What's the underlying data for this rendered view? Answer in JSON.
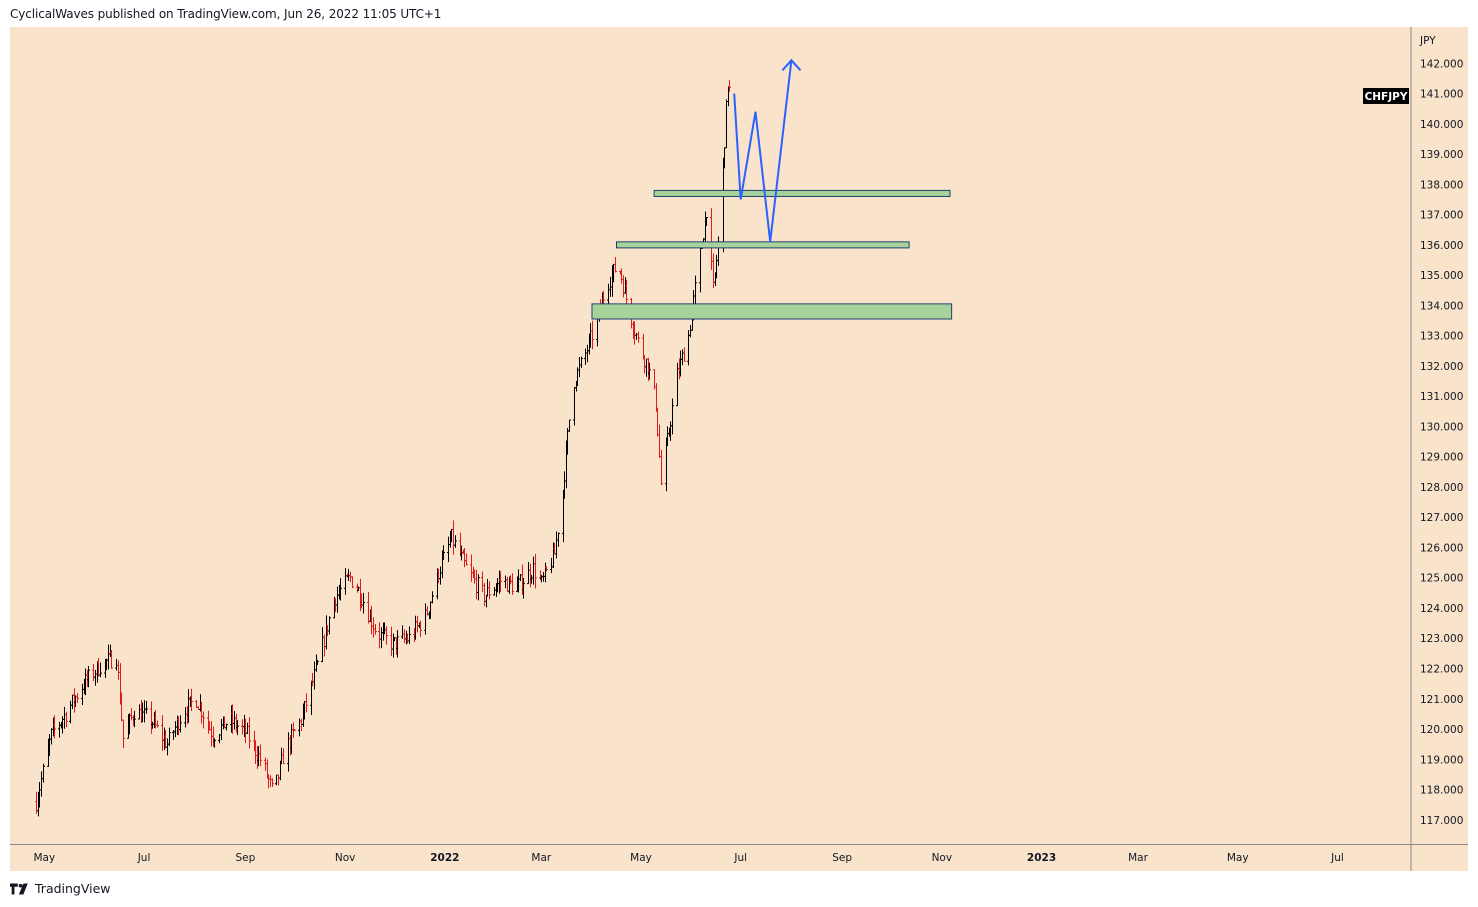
{
  "header": {
    "published_text": "CyclicalWaves published on TradingView.com, Jun 26, 2022 11:05 UTC+1"
  },
  "footer": {
    "brand": "TradingView",
    "logo_icon": "tradingview-logo-icon"
  },
  "colors": {
    "chart_bg": "#f9e3cb",
    "up_bar": "#000000",
    "down_bar": "#e01b1b",
    "zone_fill": "#a7d39a",
    "zone_border": "#1f3f6f",
    "forecast_line": "#2962ff",
    "symbol_badge_bg": "#000000",
    "symbol_badge_text": "#ffffff"
  },
  "chart_data": {
    "type": "ohlc",
    "symbol": "CHFJPY",
    "currency_label": "JPY",
    "y_ticks": [
      "142.000",
      "141.000",
      "140.000",
      "139.000",
      "138.000",
      "137.000",
      "136.000",
      "135.000",
      "134.000",
      "133.000",
      "132.000",
      "131.000",
      "130.000",
      "129.000",
      "128.000",
      "127.000",
      "126.000",
      "125.000",
      "124.000",
      "123.000",
      "122.000",
      "121.000",
      "120.000",
      "119.000",
      "118.000",
      "117.000"
    ],
    "ylim": [
      116.2,
      143.2
    ],
    "x_ticks": [
      {
        "date": "2021-05-01",
        "label": "May",
        "bold": false
      },
      {
        "date": "2021-07-01",
        "label": "Jul",
        "bold": false
      },
      {
        "date": "2021-09-01",
        "label": "Sep",
        "bold": false
      },
      {
        "date": "2021-11-01",
        "label": "Nov",
        "bold": false
      },
      {
        "date": "2022-01-01",
        "label": "2022",
        "bold": true
      },
      {
        "date": "2022-03-01",
        "label": "Mar",
        "bold": false
      },
      {
        "date": "2022-05-01",
        "label": "May",
        "bold": false
      },
      {
        "date": "2022-07-01",
        "label": "Jul",
        "bold": false
      },
      {
        "date": "2022-09-01",
        "label": "Sep",
        "bold": false
      },
      {
        "date": "2022-11-01",
        "label": "Nov",
        "bold": false
      },
      {
        "date": "2023-01-01",
        "label": "2023",
        "bold": true
      },
      {
        "date": "2023-03-01",
        "label": "Mar",
        "bold": false
      },
      {
        "date": "2023-05-01",
        "label": "May",
        "bold": false
      },
      {
        "date": "2023-07-01",
        "label": "Jul",
        "bold": false
      }
    ],
    "price_path": [
      [
        "2021-04-26",
        117.6
      ],
      [
        "2021-05-05",
        119.8
      ],
      [
        "2021-05-15",
        120.6
      ],
      [
        "2021-05-25",
        121.5
      ],
      [
        "2021-06-04",
        122.1
      ],
      [
        "2021-06-14",
        122.4
      ],
      [
        "2021-06-18",
        119.7
      ],
      [
        "2021-06-25",
        120.6
      ],
      [
        "2021-07-05",
        120.3
      ],
      [
        "2021-07-15",
        119.5
      ],
      [
        "2021-07-25",
        120.6
      ],
      [
        "2021-08-02",
        121.0
      ],
      [
        "2021-08-12",
        119.8
      ],
      [
        "2021-08-22",
        120.3
      ],
      [
        "2021-09-01",
        119.9
      ],
      [
        "2021-09-12",
        118.8
      ],
      [
        "2021-09-18",
        117.8
      ],
      [
        "2021-09-25",
        119.3
      ],
      [
        "2021-10-05",
        120.3
      ],
      [
        "2021-10-15",
        122.1
      ],
      [
        "2021-10-25",
        124.3
      ],
      [
        "2021-11-04",
        125.0
      ],
      [
        "2021-11-10",
        124.5
      ],
      [
        "2021-11-20",
        123.2
      ],
      [
        "2021-11-30",
        122.8
      ],
      [
        "2021-12-10",
        123.0
      ],
      [
        "2021-12-20",
        123.7
      ],
      [
        "2021-12-28",
        125.2
      ],
      [
        "2022-01-05",
        126.3
      ],
      [
        "2022-01-15",
        125.2
      ],
      [
        "2022-01-25",
        124.4
      ],
      [
        "2022-02-04",
        124.9
      ],
      [
        "2022-02-14",
        124.7
      ],
      [
        "2022-02-24",
        125.3
      ],
      [
        "2022-03-01",
        124.8
      ],
      [
        "2022-03-09",
        125.8
      ],
      [
        "2022-03-14",
        127.9
      ],
      [
        "2022-03-20",
        131.4
      ],
      [
        "2022-03-28",
        132.4
      ],
      [
        "2022-04-04",
        133.5
      ],
      [
        "2022-04-10",
        134.7
      ],
      [
        "2022-04-17",
        135.4
      ],
      [
        "2022-04-23",
        134.0
      ],
      [
        "2022-04-29",
        132.8
      ],
      [
        "2022-05-05",
        132.0
      ],
      [
        "2022-05-10",
        130.8
      ],
      [
        "2022-05-13",
        128.1
      ],
      [
        "2022-05-17",
        129.5
      ],
      [
        "2022-05-23",
        131.7
      ],
      [
        "2022-05-30",
        133.0
      ],
      [
        "2022-06-05",
        135.3
      ],
      [
        "2022-06-10",
        137.2
      ],
      [
        "2022-06-14",
        134.5
      ],
      [
        "2022-06-17",
        136.0
      ],
      [
        "2022-06-21",
        139.5
      ],
      [
        "2022-06-23",
        141.4
      ],
      [
        "2022-06-25",
        140.8
      ]
    ],
    "zones": [
      {
        "name": "resistance-zone-upper",
        "start": "2022-05-09",
        "end": "2022-11-06",
        "low": 137.6,
        "high": 137.8
      },
      {
        "name": "resistance-zone-middle",
        "start": "2022-04-16",
        "end": "2022-10-12",
        "low": 135.9,
        "high": 136.1
      },
      {
        "name": "support-zone-lower",
        "start": "2022-04-01",
        "end": "2022-11-07",
        "low": 133.55,
        "high": 134.05
      }
    ],
    "forecast_path": [
      [
        "2022-06-27",
        141.0
      ],
      [
        "2022-07-01",
        137.5
      ],
      [
        "2022-07-10",
        140.4
      ],
      [
        "2022-07-19",
        136.1
      ],
      [
        "2022-08-01",
        142.1
      ]
    ],
    "forecast_arrowhead": {
      "date": "2022-08-01",
      "price": 142.1
    }
  }
}
